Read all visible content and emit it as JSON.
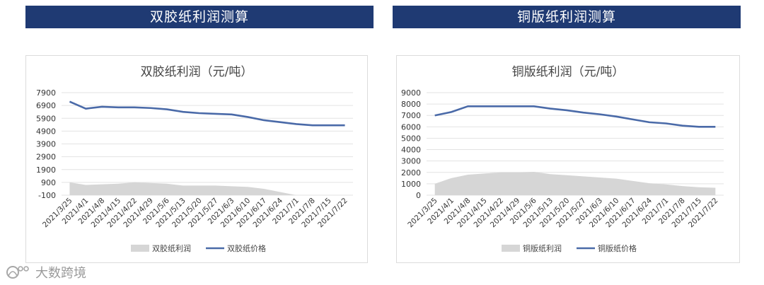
{
  "headers": {
    "left": "双胶纸利润测算",
    "right": "铜版纸利润测算"
  },
  "watermark": {
    "text": "大数跨境"
  },
  "chart_data": [
    {
      "type": "area+line",
      "title": "双胶纸利润（元/吨）",
      "categories": [
        "2021/3/25",
        "2021/4/1",
        "2021/4/8",
        "2021/4/15",
        "2021/4/22",
        "2021/4/29",
        "2021/5/6",
        "2021/5/13",
        "2021/5/20",
        "2021/5/27",
        "2021/6/3",
        "2021/6/10",
        "2021/6/17",
        "2021/6/24",
        "2021/7/1",
        "2021/7/8",
        "2021/7/15",
        "2021/7/22"
      ],
      "yticks": [
        -100,
        900,
        1900,
        2900,
        3900,
        4900,
        5900,
        6900,
        7900
      ],
      "ylim": [
        -100,
        7900
      ],
      "grid": true,
      "legend_position": "bottom",
      "series": [
        {
          "name": "双胶纸利润",
          "kind": "area",
          "color": "#d6d6d6",
          "values": [
            900,
            700,
            750,
            800,
            900,
            850,
            800,
            650,
            650,
            650,
            600,
            550,
            400,
            150,
            -100,
            -100,
            -100,
            -100
          ]
        },
        {
          "name": "双胶纸价格",
          "kind": "line",
          "color": "#4a6aa8",
          "values": [
            7200,
            6650,
            6800,
            6750,
            6750,
            6700,
            6600,
            6400,
            6300,
            6250,
            6200,
            6000,
            5750,
            5600,
            5450,
            5350,
            5350,
            5350
          ]
        }
      ]
    },
    {
      "type": "area+line",
      "title": "铜版纸利润（元/吨）",
      "categories": [
        "2021/3/25",
        "2021/4/1",
        "2021/4/8",
        "2021/4/15",
        "2021/4/22",
        "2021/4/29",
        "2021/5/6",
        "2021/5/13",
        "2021/5/20",
        "2021/5/27",
        "2021/6/3",
        "2021/6/10",
        "2021/6/17",
        "2021/6/24",
        "2021/7/1",
        "2021/7/8",
        "2021/7/15",
        "2021/7/22"
      ],
      "yticks": [
        0,
        1000,
        2000,
        3000,
        4000,
        5000,
        6000,
        7000,
        8000,
        9000
      ],
      "ylim": [
        0,
        9000
      ],
      "grid": true,
      "legend_position": "bottom",
      "series": [
        {
          "name": "铜版纸利润",
          "kind": "area",
          "color": "#d6d6d6",
          "values": [
            1000,
            1500,
            1800,
            1900,
            2000,
            2000,
            2050,
            1850,
            1750,
            1650,
            1550,
            1450,
            1250,
            1050,
            950,
            800,
            700,
            650
          ]
        },
        {
          "name": "铜版纸价格",
          "kind": "line",
          "color": "#4a6aa8",
          "values": [
            7000,
            7300,
            7800,
            7800,
            7800,
            7800,
            7800,
            7600,
            7450,
            7250,
            7100,
            6900,
            6650,
            6400,
            6300,
            6100,
            6000,
            6000
          ]
        }
      ]
    }
  ]
}
